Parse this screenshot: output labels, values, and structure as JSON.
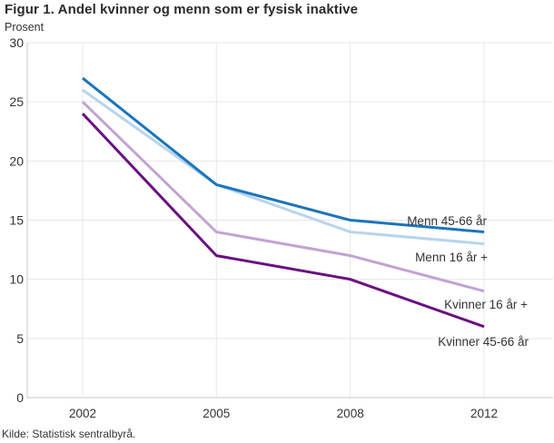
{
  "figure": {
    "title": "Figur 1. Andel kvinner og menn som er fysisk inaktive",
    "unit_label": "Prosent",
    "source": "Kilde: Statistisk sentralbyrå."
  },
  "chart_data": {
    "type": "line",
    "title": "Figur 1. Andel kvinner og menn som er fysisk inaktive",
    "ylabel": "Prosent",
    "xlabel": "",
    "categories": [
      "2002",
      "2005",
      "2008",
      "2012"
    ],
    "series": [
      {
        "name": "Menn 45-66 år",
        "values": [
          27,
          18,
          15,
          14
        ],
        "color": "#1a75bc"
      },
      {
        "name": "Menn 16 år +",
        "values": [
          26,
          18,
          14,
          13
        ],
        "color": "#b8d4ee"
      },
      {
        "name": "Kvinner 16 år +",
        "values": [
          25,
          14,
          12,
          9
        ],
        "color": "#c2a3d3"
      },
      {
        "name": "Kvinner 45-66 år",
        "values": [
          24,
          12,
          10,
          6
        ],
        "color": "#6a1080"
      }
    ],
    "ylim": [
      0,
      30
    ],
    "yticks": [
      0,
      5,
      10,
      15,
      20,
      25,
      30
    ],
    "grid": true,
    "legend_position": "inline-right-labels"
  }
}
